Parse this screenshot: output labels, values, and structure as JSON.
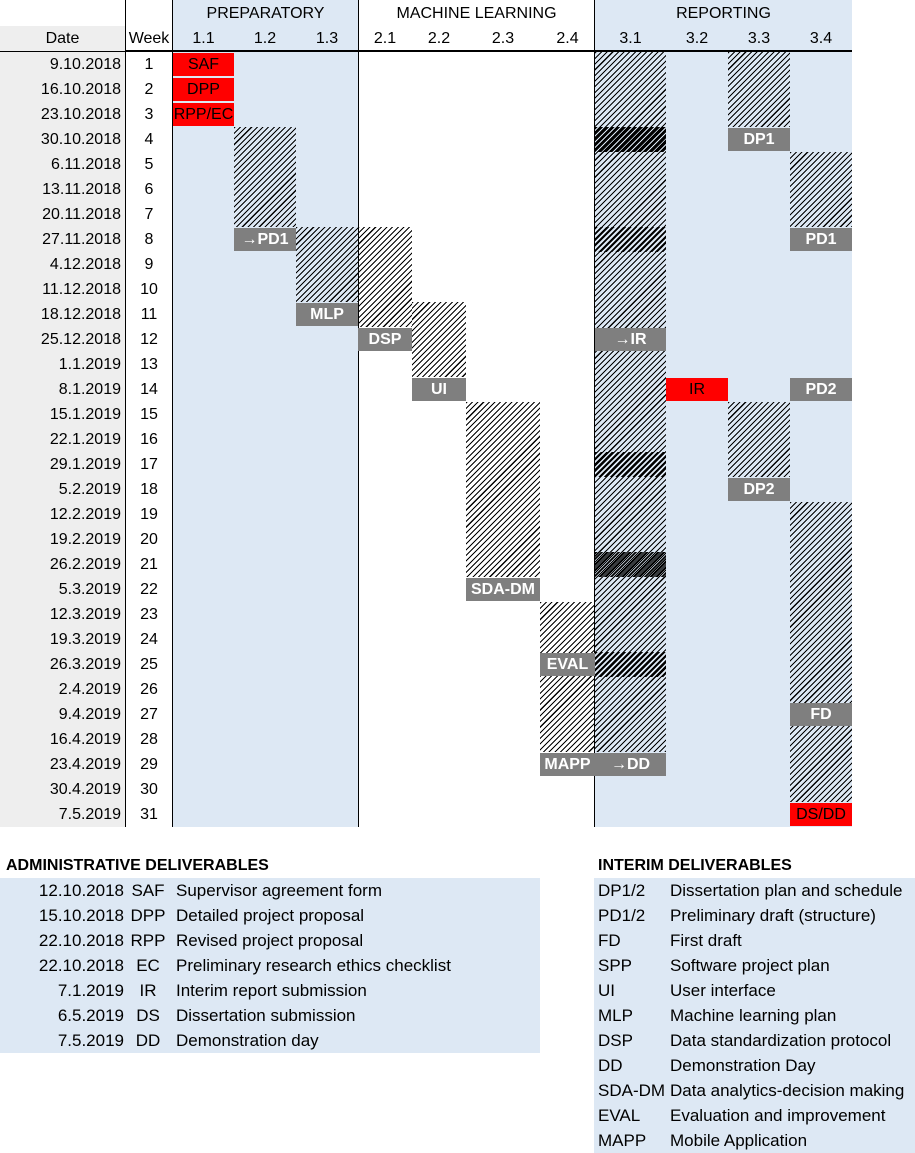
{
  "colors": {
    "phase_fill": "#dde8f4",
    "date_fill": "#eeeeee",
    "label_fill": "#7f7f7f",
    "red": "#ff0000",
    "hatch": "#000000"
  },
  "chart_data": {
    "type": "gantt",
    "row_header": "Date",
    "week_header": "Week",
    "phases": [
      {
        "name": "PREPARATORY",
        "columns": [
          "1.1",
          "1.2",
          "1.3"
        ]
      },
      {
        "name": "MACHINE LEARNING",
        "columns": [
          "2.1",
          "2.2",
          "2.3",
          "2.4"
        ]
      },
      {
        "name": "REPORTING",
        "columns": [
          "3.1",
          "3.2",
          "3.3",
          "3.4"
        ]
      }
    ],
    "rows": [
      {
        "date": "9.10.2018",
        "week": 1
      },
      {
        "date": "16.10.2018",
        "week": 2
      },
      {
        "date": "23.10.2018",
        "week": 3
      },
      {
        "date": "30.10.2018",
        "week": 4
      },
      {
        "date": "6.11.2018",
        "week": 5
      },
      {
        "date": "13.11.2018",
        "week": 6
      },
      {
        "date": "20.11.2018",
        "week": 7
      },
      {
        "date": "27.11.2018",
        "week": 8
      },
      {
        "date": "4.12.2018",
        "week": 9
      },
      {
        "date": "11.12.2018",
        "week": 10
      },
      {
        "date": "18.12.2018",
        "week": 11
      },
      {
        "date": "25.12.2018",
        "week": 12
      },
      {
        "date": "1.1.2019",
        "week": 13
      },
      {
        "date": "8.1.2019",
        "week": 14
      },
      {
        "date": "15.1.2019",
        "week": 15
      },
      {
        "date": "22.1.2019",
        "week": 16
      },
      {
        "date": "29.1.2019",
        "week": 17
      },
      {
        "date": "5.2.2019",
        "week": 18
      },
      {
        "date": "12.2.2019",
        "week": 19
      },
      {
        "date": "19.2.2019",
        "week": 20
      },
      {
        "date": "26.2.2019",
        "week": 21
      },
      {
        "date": "5.3.2019",
        "week": 22
      },
      {
        "date": "12.3.2019",
        "week": 23
      },
      {
        "date": "19.3.2019",
        "week": 24
      },
      {
        "date": "26.3.2019",
        "week": 25
      },
      {
        "date": "2.4.2019",
        "week": 26
      },
      {
        "date": "9.4.2019",
        "week": 27
      },
      {
        "date": "16.4.2019",
        "week": 28
      },
      {
        "date": "23.4.2019",
        "week": 29
      },
      {
        "date": "30.4.2019",
        "week": 30
      },
      {
        "date": "7.5.2019",
        "week": 31
      }
    ],
    "tasks": [
      {
        "column": "1.2",
        "start_week": 4,
        "end_week": 7
      },
      {
        "column": "1.3",
        "start_week": 8,
        "end_week": 10
      },
      {
        "column": "2.1",
        "start_week": 8,
        "end_week": 11
      },
      {
        "column": "2.2",
        "start_week": 11,
        "end_week": 13
      },
      {
        "column": "2.3",
        "start_week": 15,
        "end_week": 21
      },
      {
        "column": "2.4",
        "start_week": 23,
        "end_week": 28
      },
      {
        "column": "3.1",
        "start_week": 1,
        "end_week": 28
      },
      {
        "column": "3.3",
        "start_week": 1,
        "end_week": 3
      },
      {
        "column": "3.3",
        "start_week": 15,
        "end_week": 17
      },
      {
        "column": "3.4",
        "start_week": 5,
        "end_week": 7
      },
      {
        "column": "3.4",
        "start_week": 19,
        "end_week": 30
      }
    ],
    "dark_segments": [
      {
        "column": "3.1",
        "week": 4
      },
      {
        "column": "3.1",
        "week": 8
      },
      {
        "column": "3.1",
        "week": 17
      },
      {
        "column": "3.1",
        "week": 21
      },
      {
        "column": "3.1",
        "week": 25
      }
    ],
    "milestones": [
      {
        "column": "1.1",
        "week": 1,
        "label": "SAF",
        "style": "red"
      },
      {
        "column": "1.1",
        "week": 2,
        "label": "DPP",
        "style": "red"
      },
      {
        "column": "1.1",
        "week": 3,
        "label": "RPP/EC",
        "style": "red"
      },
      {
        "column": "3.3",
        "week": 4,
        "label": "DP1",
        "style": "grey"
      },
      {
        "column": "1.2",
        "week": 8,
        "label": "→PD1",
        "style": "grey"
      },
      {
        "column": "3.4",
        "week": 8,
        "label": "PD1",
        "style": "grey"
      },
      {
        "column": "1.3",
        "week": 11,
        "label": "MLP",
        "style": "grey"
      },
      {
        "column": "2.1",
        "week": 12,
        "label": "DSP",
        "style": "grey"
      },
      {
        "column": "3.1",
        "week": 12,
        "label": "→IR",
        "style": "grey"
      },
      {
        "column": "2.2",
        "week": 14,
        "label": "UI",
        "style": "grey"
      },
      {
        "column": "3.2",
        "week": 14,
        "label": "IR",
        "style": "red"
      },
      {
        "column": "3.4",
        "week": 14,
        "label": "PD2",
        "style": "grey"
      },
      {
        "column": "3.3",
        "week": 18,
        "label": "DP2",
        "style": "grey"
      },
      {
        "column": "2.3",
        "week": 22,
        "label": "SDA-DM",
        "style": "grey"
      },
      {
        "column": "2.4",
        "week": 25,
        "label": "EVAL",
        "style": "grey"
      },
      {
        "column": "3.4",
        "week": 27,
        "label": "FD",
        "style": "grey"
      },
      {
        "column": "2.4",
        "week": 29,
        "label": "MAPP",
        "style": "grey"
      },
      {
        "column": "3.1",
        "week": 29,
        "label": "→DD",
        "style": "grey"
      },
      {
        "column": "3.4",
        "week": 31,
        "label": "DS/DD",
        "style": "red"
      }
    ]
  },
  "admin_legend": {
    "title": "ADMINISTRATIVE DELIVERABLES",
    "items": [
      {
        "date": "12.10.2018",
        "code": "SAF",
        "desc": "Supervisor agreement form"
      },
      {
        "date": "15.10.2018",
        "code": "DPP",
        "desc": "Detailed project proposal"
      },
      {
        "date": "22.10.2018",
        "code": "RPP",
        "desc": "Revised project proposal"
      },
      {
        "date": "22.10.2018",
        "code": "EC",
        "desc": "Preliminary research ethics checklist"
      },
      {
        "date": "7.1.2019",
        "code": "IR",
        "desc": "Interim report submission"
      },
      {
        "date": "6.5.2019",
        "code": "DS",
        "desc": "Dissertation submission"
      },
      {
        "date": "7.5.2019",
        "code": "DD",
        "desc": "Demonstration day"
      }
    ]
  },
  "interim_legend": {
    "title": "INTERIM DELIVERABLES",
    "items": [
      {
        "code": "DP1/2",
        "desc": "Dissertation plan and schedule"
      },
      {
        "code": "PD1/2",
        "desc": "Preliminary draft (structure)"
      },
      {
        "code": "FD",
        "desc": "First draft"
      },
      {
        "code": "SPP",
        "desc": "Software project plan"
      },
      {
        "code": "UI",
        "desc": "User interface"
      },
      {
        "code": "MLP",
        "desc": "Machine learning plan"
      },
      {
        "code": "DSP",
        "desc": "Data standardization protocol"
      },
      {
        "code": "DD",
        "desc": "Demonstration Day"
      },
      {
        "code": "SDA-DM",
        "desc": "Data analytics-decision making"
      },
      {
        "code": "EVAL",
        "desc": "Evaluation and improvement"
      },
      {
        "code": "MAPP",
        "desc": "Mobile Application"
      }
    ]
  }
}
